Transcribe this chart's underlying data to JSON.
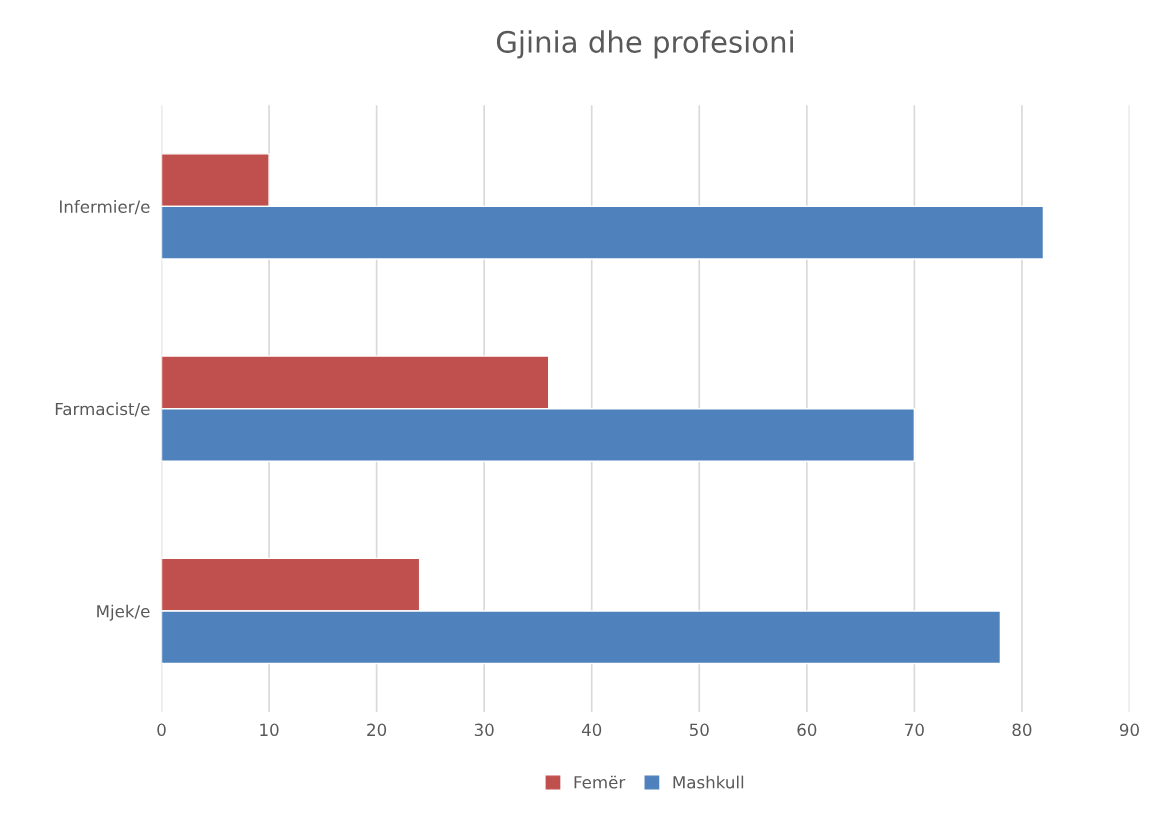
{
  "chart_data": {
    "type": "bar",
    "orientation": "horizontal",
    "title": "Gjinia dhe profesioni",
    "categories": [
      "Infermier/e",
      "Farmacist/e",
      "Mjek/e"
    ],
    "series": [
      {
        "name": "Femër",
        "color": "#c0504d",
        "values": [
          10,
          36,
          24
        ]
      },
      {
        "name": "Mashkull",
        "color": "#4f81bd",
        "values": [
          82,
          70,
          78
        ]
      }
    ],
    "xlim": [
      0,
      90
    ],
    "xticks": [
      0,
      10,
      20,
      30,
      40,
      50,
      60,
      70,
      80,
      90
    ],
    "grid": "x",
    "legend": "bottom"
  }
}
